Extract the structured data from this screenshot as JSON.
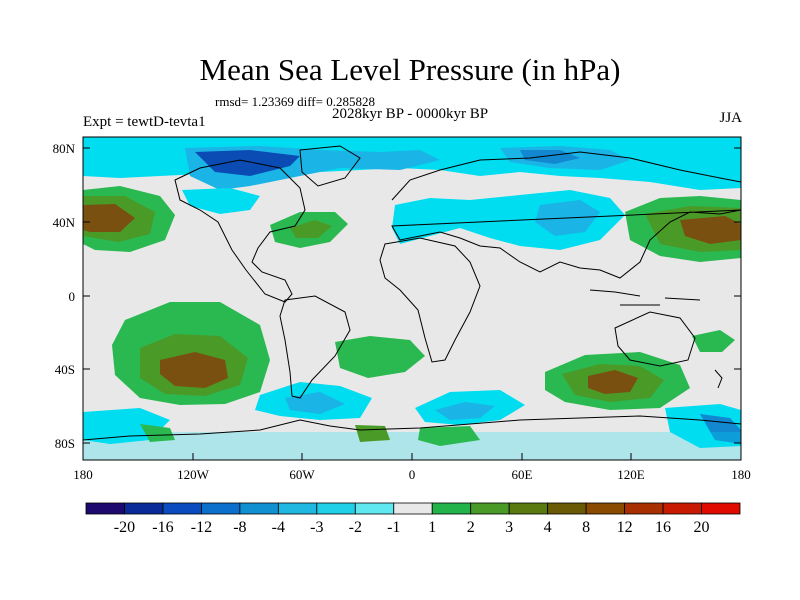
{
  "title": "Mean Sea Level Pressure (in hPa)",
  "stats_line": "rmsd= 1.23369 diff= 0.285828",
  "period": "2028kyr BP - 0000kyr BP",
  "experiment": "Expt = tewtD-tevta1",
  "season": "JJA",
  "lat_labels": [
    "80N",
    "40N",
    "0",
    "40S",
    "80S"
  ],
  "lon_labels": [
    "180",
    "120W",
    "60W",
    "0",
    "60E",
    "120E",
    "180"
  ],
  "colorbar": {
    "labels": [
      "-20",
      "-16",
      "-12",
      "-8",
      "-4",
      "-3",
      "-2",
      "-1",
      "1",
      "2",
      "3",
      "4",
      "8",
      "12",
      "16",
      "20"
    ],
    "colors": [
      "#1e0a6e",
      "#0a2a9a",
      "#0a4cc0",
      "#0b70cc",
      "#1090d0",
      "#20b8e0",
      "#20d0e8",
      "#60e8f0",
      "#e8e8e8",
      "#22b44a",
      "#4a9a28",
      "#5a7a10",
      "#6a5a05",
      "#8a4a00",
      "#a83000",
      "#c81a00",
      "#e00a00"
    ]
  },
  "field_colors": {
    "background": "#e8e8e8",
    "neg_light": "#00dcf0",
    "neg_mid": "#1ab4e6",
    "neg_strong": "#1288d0",
    "neg_deep": "#0a4cb4",
    "pos_light": "#2ab850",
    "pos_mid": "#4a9a28",
    "pos_strong": "#607020",
    "pos_deep": "#7a5010"
  }
}
